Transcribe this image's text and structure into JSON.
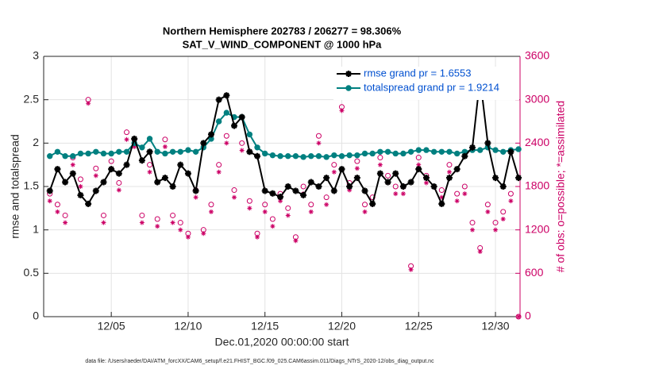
{
  "chart_data": {
    "type": "line",
    "title": "Northern Hemisphere 202783 / 206277 = 98.306%",
    "subtitle": "SAT_V_WIND_COMPONENT @ 1000 hPa",
    "x_label": "Dec.01,2020 00:00:00 start",
    "y_label": "rmse and totalspread",
    "y2_label": "# of obs: o=possible; *=assimilated",
    "footnote": "data file: /Users/raeder/DAI/ATM_forcXX/CAM6_setup/f.e21.FHIST_BGC.f09_025.CAM6assim.011/Diags_NTrS_2020-12/obs_diag_output.nc",
    "x": [
      1,
      1.5,
      2,
      2.5,
      3,
      3.5,
      4,
      4.5,
      5,
      5.5,
      6,
      6.5,
      7,
      7.5,
      8,
      8.5,
      9,
      9.5,
      10,
      10.5,
      11,
      11.5,
      12,
      12.5,
      13,
      13.5,
      14,
      14.5,
      15,
      15.5,
      16,
      16.5,
      17,
      17.5,
      18,
      18.5,
      19,
      19.5,
      20,
      20.5,
      21,
      21.5,
      22,
      22.5,
      23,
      23.5,
      24,
      24.5,
      25,
      25.5,
      26,
      26.5,
      27,
      27.5,
      28,
      28.5,
      29,
      29.5,
      30,
      30.5,
      31,
      31.5
    ],
    "xlim": [
      0.6,
      31.6
    ],
    "xticks": [
      {
        "value": 5,
        "label": "12/05"
      },
      {
        "value": 10,
        "label": "12/10"
      },
      {
        "value": 15,
        "label": "12/15"
      },
      {
        "value": 20,
        "label": "12/20"
      },
      {
        "value": 25,
        "label": "12/25"
      },
      {
        "value": 30,
        "label": "12/30"
      }
    ],
    "ylim": [
      0,
      3
    ],
    "yticks": [
      0,
      0.5,
      1,
      1.5,
      2,
      2.5,
      3
    ],
    "y2lim": [
      0,
      3600
    ],
    "y2ticks": [
      0,
      600,
      1200,
      1800,
      2400,
      3000,
      3600
    ],
    "grid": true,
    "legend": "upper right",
    "series": [
      {
        "name": "rmse grand pr = 1.6553",
        "color": "#000000",
        "marker": "star",
        "values": [
          1.45,
          1.7,
          1.55,
          1.65,
          1.4,
          1.3,
          1.45,
          1.55,
          1.7,
          1.65,
          1.75,
          2.05,
          1.8,
          1.9,
          1.55,
          1.6,
          1.5,
          1.75,
          1.65,
          1.45,
          2.0,
          2.1,
          2.5,
          2.55,
          2.2,
          2.3,
          1.9,
          1.85,
          1.45,
          1.42,
          1.38,
          1.5,
          1.45,
          1.4,
          1.55,
          1.5,
          1.6,
          1.45,
          1.7,
          1.5,
          1.6,
          1.45,
          1.3,
          1.65,
          1.55,
          1.65,
          1.5,
          1.55,
          1.7,
          1.6,
          1.5,
          1.3,
          1.6,
          1.7,
          1.85,
          1.95,
          2.75,
          2.0,
          1.6,
          1.5,
          1.9,
          1.6
        ]
      },
      {
        "name": "totalspread grand pr = 1.9214",
        "color": "#008080",
        "marker": "circle",
        "values": [
          1.85,
          1.9,
          1.85,
          1.85,
          1.88,
          1.88,
          1.9,
          1.88,
          1.88,
          1.9,
          1.9,
          2.0,
          1.95,
          2.05,
          1.9,
          1.88,
          1.9,
          1.9,
          1.92,
          1.9,
          1.95,
          2.05,
          2.25,
          2.35,
          2.3,
          2.3,
          2.1,
          1.95,
          1.88,
          1.86,
          1.85,
          1.85,
          1.85,
          1.84,
          1.85,
          1.85,
          1.84,
          1.86,
          1.85,
          1.86,
          1.86,
          1.88,
          1.88,
          1.9,
          1.9,
          1.88,
          1.88,
          1.9,
          1.92,
          1.92,
          1.9,
          1.9,
          1.9,
          1.88,
          1.9,
          1.92,
          1.92,
          1.95,
          1.92,
          1.9,
          1.92,
          1.93
        ]
      },
      {
        "color": "#cc0066",
        "marker": "open-circle",
        "axis": "y2",
        "values": [
          1700,
          1550,
          1400,
          2200,
          1900,
          3000,
          2050,
          1400,
          2150,
          1850,
          2550,
          2450,
          1400,
          2100,
          1350,
          2450,
          1400,
          1300,
          1150,
          1750,
          1200,
          1550,
          2100,
          2500,
          1750,
          2400,
          1600,
          1150,
          1550,
          1350,
          1700,
          1500,
          1100,
          1800,
          1550,
          2500,
          1650,
          2100,
          2900,
          1850,
          2150,
          1550,
          1650,
          2200,
          1950,
          1800,
          1800,
          700,
          2200,
          1950,
          3150,
          1750,
          2100,
          1700,
          1800,
          1300,
          950,
          1550,
          1300,
          1450,
          1700,
          0
        ]
      },
      {
        "color": "#cc0066",
        "marker": "asterisk",
        "axis": "y2",
        "values": [
          1600,
          1450,
          1300,
          2100,
          1800,
          2950,
          1950,
          1300,
          2050,
          1750,
          2450,
          2350,
          1300,
          2000,
          1250,
          2350,
          1300,
          1200,
          1100,
          1650,
          1150,
          1450,
          2000,
          2400,
          1650,
          2300,
          1500,
          1100,
          1450,
          1250,
          1600,
          1400,
          1050,
          1700,
          1450,
          2400,
          1550,
          2000,
          2850,
          1750,
          2050,
          1450,
          1550,
          2100,
          1850,
          1700,
          1700,
          650,
          2100,
          1850,
          3050,
          1650,
          2000,
          1600,
          1700,
          1200,
          900,
          1450,
          1200,
          1350,
          1600,
          0
        ]
      }
    ]
  }
}
